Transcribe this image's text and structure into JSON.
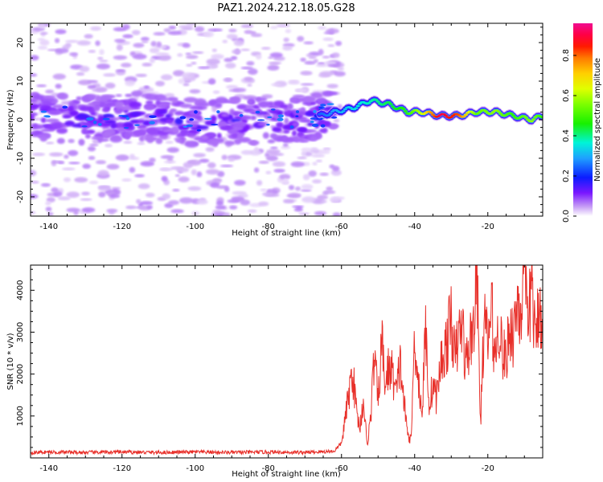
{
  "title": "PAZ1.2024.212.18.05.G28",
  "chart_data": [
    {
      "type": "heatmap",
      "xlabel": "Height of straight line (km)",
      "ylabel": "Frequency (Hz)",
      "xlim": [
        -145,
        -5
      ],
      "ylim": [
        -25,
        25
      ],
      "xticks": [
        -140,
        -120,
        -100,
        -80,
        -60,
        -40,
        -20
      ],
      "yticks": [
        -20,
        -10,
        0,
        10,
        20
      ],
      "colorbar": {
        "label": "Normalized spectral amplitude",
        "range": [
          0,
          0.96
        ],
        "ticks": [
          "0.0",
          "0.2",
          "0.4",
          "0.6",
          "0.8"
        ],
        "colormap": "gist_ncar-like (white, violet, blue, cyan, green, yellow, orange, red, pink)"
      },
      "ridge": {
        "description": "dominant frequency track",
        "x": [
          -145,
          -130,
          -115,
          -100,
          -85,
          -70,
          -62,
          -57,
          -52,
          -47,
          -42,
          -38,
          -33,
          -28,
          -23,
          -18,
          -13,
          -8,
          -5
        ],
        "freq": [
          1,
          0,
          1,
          -1,
          0,
          0,
          2,
          3,
          5,
          4,
          2,
          2,
          1,
          1,
          2,
          2,
          1,
          0,
          1
        ],
        "amplitude": [
          0.15,
          0.15,
          0.15,
          0.15,
          0.15,
          0.2,
          0.3,
          0.35,
          0.4,
          0.45,
          0.5,
          0.65,
          0.95,
          0.85,
          0.55,
          0.6,
          0.5,
          0.6,
          0.5
        ]
      },
      "grid": false
    },
    {
      "type": "line",
      "xlabel": "Height of straight line (km)",
      "ylabel": "SNR (10 * v/v)",
      "xlim": [
        -145,
        -5
      ],
      "ylim": [
        0,
        4600
      ],
      "xticks": [
        -140,
        -120,
        -100,
        -80,
        -60,
        -40,
        -20
      ],
      "yticks": [
        1000,
        2000,
        3000,
        4000
      ],
      "color": "#e8302a",
      "grid": false,
      "series": [
        {
          "x": [
            -145,
            -140,
            -130,
            -120,
            -110,
            -100,
            -90,
            -80,
            -70,
            -62,
            -60,
            -58,
            -57,
            -56,
            -55,
            -54,
            -53,
            -52,
            -51,
            -50,
            -49,
            -48,
            -47,
            -46,
            -45,
            -44,
            -43,
            -42,
            -41,
            -40,
            -39,
            -38,
            -37,
            -36,
            -35,
            -34,
            -33,
            -32,
            -31,
            -30,
            -29,
            -28,
            -27,
            -26,
            -25,
            -24,
            -23,
            -22,
            -21,
            -20,
            -19,
            -18,
            -17,
            -16,
            -15,
            -14,
            -13,
            -12,
            -11,
            -10,
            -9,
            -8,
            -7,
            -6,
            -5
          ],
          "values": [
            130,
            140,
            130,
            140,
            130,
            140,
            130,
            140,
            130,
            160,
            350,
            1500,
            2100,
            1200,
            700,
            1400,
            300,
            1000,
            2500,
            1300,
            2800,
            1700,
            2200,
            2000,
            1500,
            2300,
            1400,
            600,
            400,
            2900,
            1900,
            1000,
            3100,
            1200,
            1800,
            1400,
            2200,
            2500,
            2800,
            3400,
            2300,
            2900,
            3200,
            2200,
            2700,
            3100,
            4500,
            800,
            3300,
            2700,
            3600,
            2300,
            3300,
            2500,
            2300,
            3200,
            2900,
            3800,
            3500,
            4300,
            2900,
            4400,
            2600,
            3700,
            3400
          ]
        }
      ]
    }
  ]
}
